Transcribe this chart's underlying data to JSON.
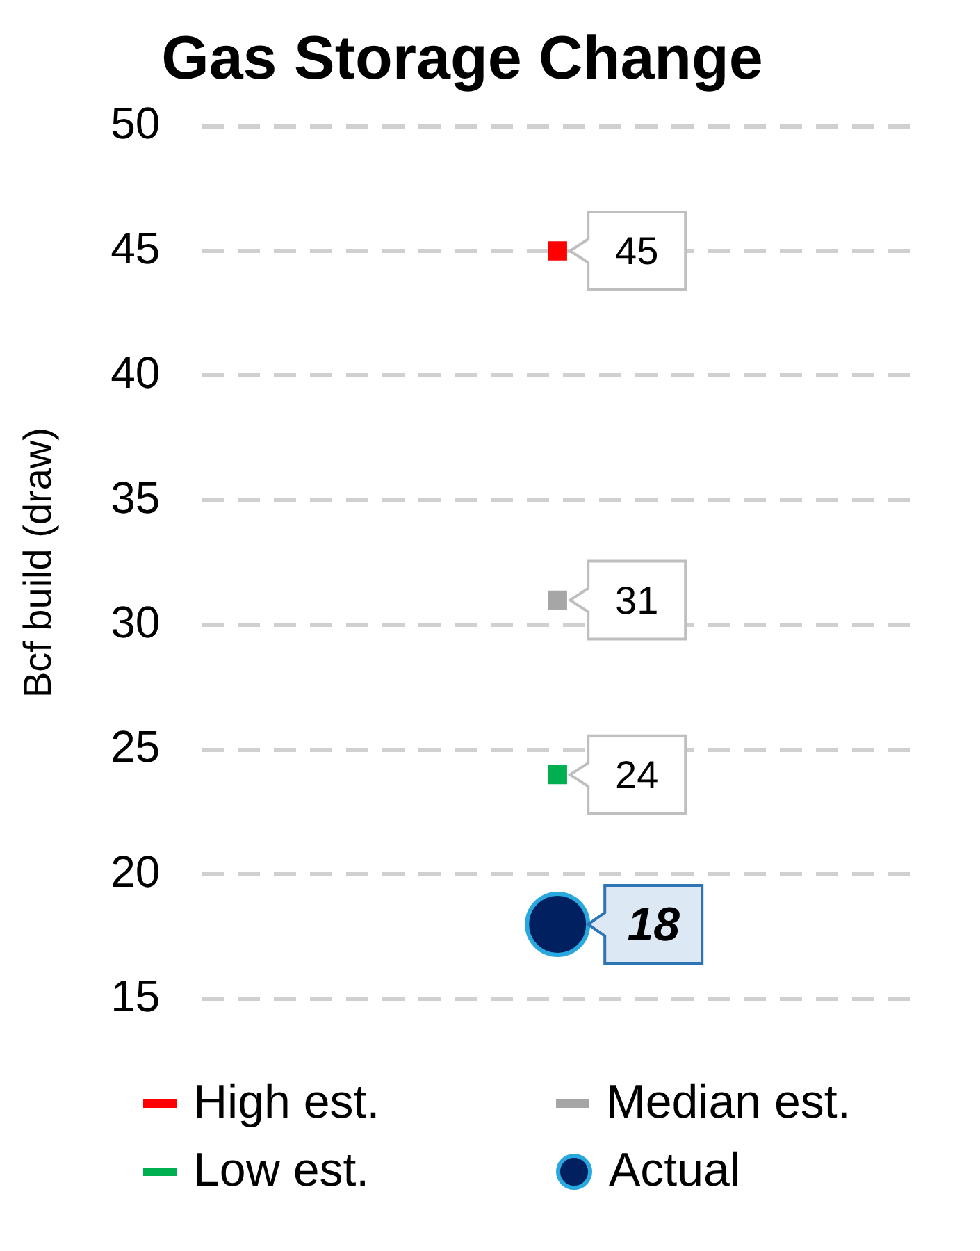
{
  "chart_data": {
    "type": "scatter",
    "title": "Gas Storage Change",
    "ylabel": "Bcf build (draw)",
    "categories": [
      null
    ],
    "series": [
      {
        "name": "High est.",
        "color": "#ff0000",
        "values": [
          45
        ],
        "marker": "square"
      },
      {
        "name": "Median est.",
        "color": "#a6a6a6",
        "values": [
          31
        ],
        "marker": "square"
      },
      {
        "name": "Low est.",
        "color": "#00b050",
        "values": [
          24
        ],
        "marker": "square"
      },
      {
        "name": "Actual",
        "color": "#002060",
        "values": [
          18
        ],
        "marker": "circle"
      }
    ],
    "ylim": [
      15,
      50
    ],
    "yticks": [
      15,
      20,
      25,
      30,
      35,
      40,
      45,
      50
    ],
    "grid": "y",
    "legend": "bottom",
    "data_labels": true
  }
}
